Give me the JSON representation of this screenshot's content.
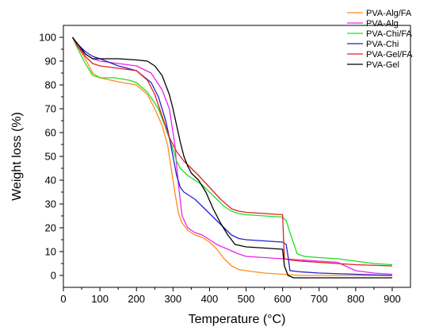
{
  "chart_data": {
    "type": "line",
    "title": "",
    "xlabel": "Temperature (°C)",
    "ylabel": "Weight loss (%)",
    "xlim": [
      0,
      950
    ],
    "ylim": [
      -5,
      105
    ],
    "xticks": [
      0,
      100,
      200,
      300,
      400,
      500,
      600,
      700,
      800,
      900
    ],
    "yticks": [
      0,
      10,
      20,
      30,
      40,
      50,
      60,
      70,
      80,
      90,
      100
    ],
    "grid": false,
    "legend_position": "top-right",
    "series": [
      {
        "name": "PVA-Alg/FA",
        "color": "#ff8c1a",
        "x": [
          25,
          40,
          60,
          80,
          100,
          130,
          160,
          200,
          230,
          250,
          270,
          285,
          295,
          305,
          315,
          325,
          340,
          360,
          380,
          400,
          420,
          440,
          460,
          480,
          500,
          550,
          600,
          650,
          700,
          800,
          900
        ],
        "y": [
          100,
          96,
          91,
          85,
          83,
          82,
          81,
          80,
          76,
          70,
          63,
          55,
          45,
          35,
          26,
          22,
          19,
          17,
          16,
          14,
          11,
          7,
          4,
          2.5,
          2,
          1,
          0.5,
          0,
          0,
          0,
          0
        ]
      },
      {
        "name": "PVA-Alg",
        "color": "#ee22ee",
        "x": [
          25,
          40,
          60,
          80,
          100,
          150,
          200,
          240,
          270,
          290,
          305,
          315,
          325,
          340,
          360,
          380,
          400,
          420,
          450,
          480,
          500,
          550,
          600,
          650,
          700,
          750,
          800,
          850,
          900
        ],
        "y": [
          100,
          96,
          93,
          91,
          90,
          89,
          88,
          85,
          78,
          70,
          55,
          38,
          25,
          20,
          18,
          17,
          15,
          13,
          11,
          9,
          8,
          7.5,
          7,
          6.5,
          6,
          5.5,
          2,
          1,
          0.5
        ]
      },
      {
        "name": "PVA-Chi/FA",
        "color": "#22dd22",
        "x": [
          25,
          40,
          60,
          80,
          100,
          140,
          180,
          200,
          230,
          260,
          280,
          300,
          310,
          320,
          340,
          360,
          380,
          400,
          420,
          440,
          460,
          480,
          500,
          550,
          600,
          610,
          620,
          640,
          660,
          700,
          750,
          800,
          850,
          900
        ],
        "y": [
          100,
          95,
          89,
          84,
          83,
          83,
          82,
          81,
          77,
          70,
          62,
          53,
          48,
          45,
          42,
          40,
          38,
          35,
          32,
          29,
          27,
          26,
          25.5,
          25,
          24.5,
          23,
          18,
          9,
          8,
          7.5,
          7,
          6,
          5,
          4.5
        ]
      },
      {
        "name": "PVA-Chi",
        "color": "#2222cc",
        "x": [
          25,
          40,
          60,
          80,
          100,
          150,
          200,
          240,
          260,
          280,
          290,
          300,
          310,
          320,
          330,
          340,
          360,
          380,
          400,
          420,
          440,
          460,
          480,
          500,
          550,
          600,
          610,
          615,
          620,
          650,
          700,
          800,
          900
        ],
        "y": [
          100,
          97,
          94,
          92,
          91,
          88,
          86,
          81,
          75,
          65,
          58,
          50,
          42,
          37,
          35,
          34,
          32,
          29,
          26,
          23,
          20,
          17,
          15.5,
          15,
          14.5,
          14,
          13,
          8,
          2,
          1.5,
          1,
          0.5,
          0
        ]
      },
      {
        "name": "PVA-Gel/FA",
        "color": "#dd2222",
        "x": [
          25,
          40,
          60,
          80,
          100,
          150,
          200,
          230,
          250,
          270,
          290,
          310,
          330,
          350,
          370,
          400,
          430,
          460,
          480,
          500,
          550,
          600,
          605,
          620,
          650,
          700,
          800,
          900
        ],
        "y": [
          100,
          96,
          92,
          89,
          88,
          87,
          86,
          82,
          76,
          67,
          58,
          52,
          48,
          45,
          42,
          37,
          32,
          28,
          27,
          26.5,
          26,
          25.5,
          7,
          6.5,
          6,
          5.5,
          4.5,
          4
        ]
      },
      {
        "name": "PVA-Gel",
        "color": "#000000",
        "x": [
          25,
          40,
          60,
          80,
          100,
          150,
          200,
          230,
          250,
          270,
          290,
          300,
          310,
          320,
          330,
          340,
          350,
          370,
          390,
          410,
          430,
          450,
          470,
          500,
          550,
          600,
          605,
          615,
          630,
          650,
          700,
          800,
          900
        ],
        "y": [
          100,
          97,
          93,
          91,
          91,
          91,
          90.5,
          90,
          88,
          84,
          76,
          70,
          63,
          56,
          50,
          46,
          43,
          40,
          35,
          28,
          22,
          17,
          13,
          12,
          11.5,
          11,
          4,
          0,
          -1,
          -1,
          -1,
          -1,
          -1
        ]
      }
    ]
  }
}
